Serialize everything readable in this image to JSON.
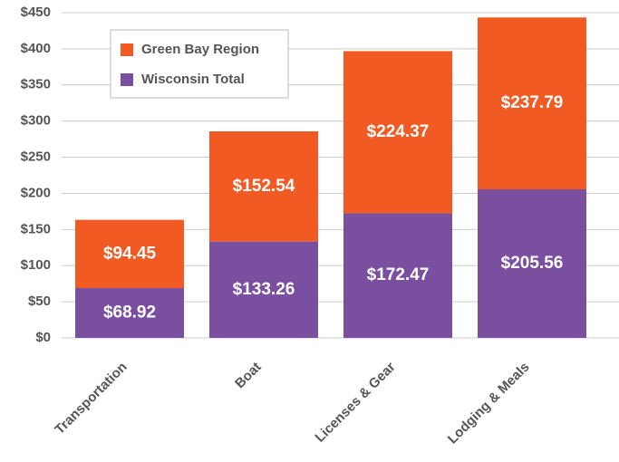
{
  "chart_data": {
    "type": "stacked_bar",
    "categories": [
      "Transportation",
      "Boat",
      "Licenses & Gear",
      "Lodging & Meals"
    ],
    "series": [
      {
        "name": "Green Bay Region",
        "color": "#f15a22",
        "values": [
          94.45,
          152.54,
          224.37,
          237.79
        ],
        "value_labels": [
          "$94.45",
          "$152.54",
          "$224.37",
          "$237.79"
        ]
      },
      {
        "name": "Wisconsin Total",
        "color": "#7b4fa0",
        "values": [
          68.92,
          133.26,
          172.47,
          205.56
        ],
        "value_labels": [
          "$68.92",
          "$133.26",
          "$172.47",
          "$205.56"
        ]
      }
    ],
    "ylim": [
      0,
      450
    ],
    "yticks": [
      {
        "value": 0,
        "label": "$0"
      },
      {
        "value": 50,
        "label": "$50"
      },
      {
        "value": 100,
        "label": "$100"
      },
      {
        "value": 150,
        "label": "$150"
      },
      {
        "value": 200,
        "label": "$200"
      },
      {
        "value": 250,
        "label": "$250"
      },
      {
        "value": 300,
        "label": "$300"
      },
      {
        "value": 350,
        "label": "$350"
      },
      {
        "value": 400,
        "label": "$400"
      },
      {
        "value": 450,
        "label": "$450"
      }
    ],
    "grid": true
  }
}
